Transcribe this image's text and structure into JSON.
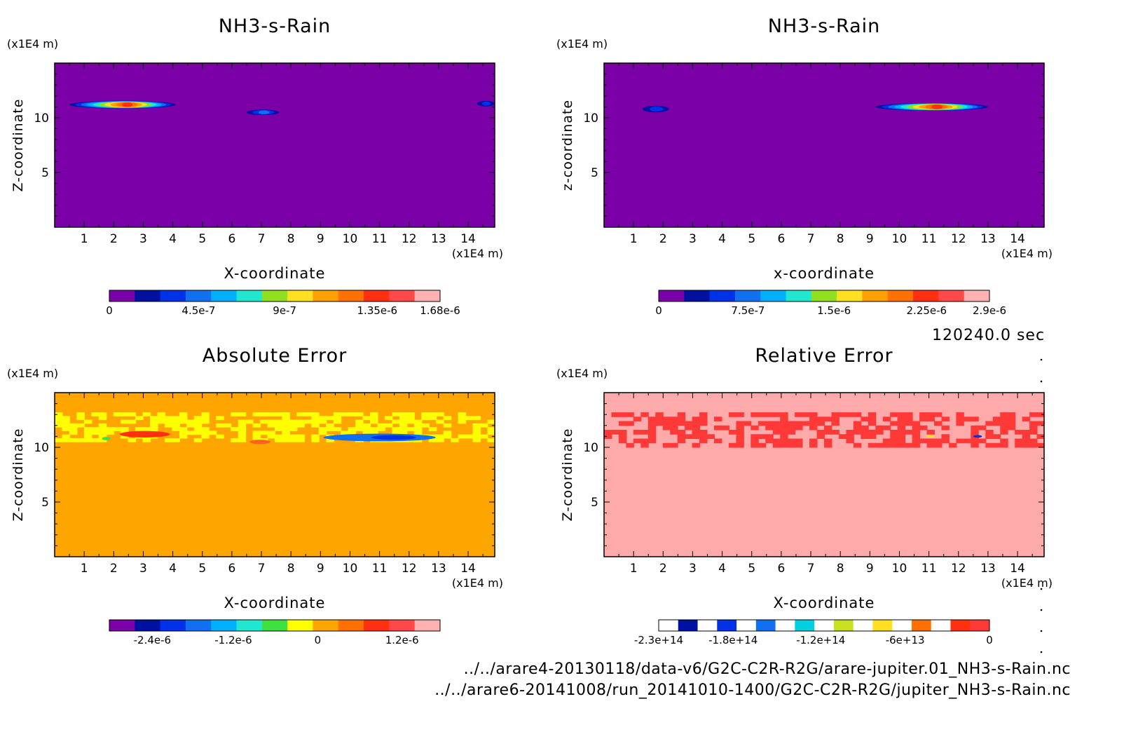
{
  "time_label": "120240.0 sec",
  "footer": {
    "file1": "../../arare4-20130118/data-v6/G2C-C2R-R2G/arare-jupiter.01_NH3-s-Rain.nc",
    "file2": "../../arare6-20141008/run_20141010-1400/G2C-C2R-R2G/jupiter_NH3-s-Rain.nc"
  },
  "chart_data": [
    {
      "type": "heatmap",
      "title": "NH3-s-Rain",
      "xlabel": "X-coordinate",
      "ylabel": "Z-coordinate",
      "x_unit": "(x1E4 m)",
      "y_unit": "(x1E4 m)",
      "xlim": [
        0,
        14.9
      ],
      "ylim": [
        0,
        15
      ],
      "xticks": [
        "1",
        "2",
        "3",
        "4",
        "5",
        "6",
        "7",
        "8",
        "9",
        "10",
        "11",
        "12",
        "13",
        "14"
      ],
      "yticks": [
        "5",
        "10"
      ],
      "background_color": "#7b00a8",
      "blobs": [
        {
          "x0": 0.5,
          "x1": 4.1,
          "z": 11.2,
          "half_height": 0.35,
          "peak": 0.85
        },
        {
          "x0": 6.5,
          "x1": 7.6,
          "z": 10.5,
          "half_height": 0.25,
          "peak": 0.25
        },
        {
          "x0": 14.3,
          "x1": 14.9,
          "z": 11.3,
          "half_height": 0.25,
          "peak": 0.2
        }
      ],
      "colorbar": {
        "ticks": [
          "0",
          "4.5e-7",
          "9e-7",
          "1.35e-6",
          "1.68e-6"
        ],
        "colors": [
          "#7b00a8",
          "#0010a0",
          "#0030e8",
          "#1070f0",
          "#00b0ff",
          "#20e8d0",
          "#90e020",
          "#ffe020",
          "#ffa000",
          "#ff7000",
          "#ff3010",
          "#ff4848",
          "#ffb0b0"
        ]
      }
    },
    {
      "type": "heatmap",
      "title": "NH3-s-Rain",
      "xlabel": "x-coordinate",
      "ylabel": "z-coordinate",
      "x_unit": "(x1E4 m)",
      "y_unit": "(x1E4 m)",
      "xlim": [
        0,
        14.9
      ],
      "ylim": [
        0,
        15
      ],
      "xticks": [
        "1",
        "2",
        "3",
        "4",
        "5",
        "6",
        "7",
        "8",
        "9",
        "10",
        "11",
        "12",
        "13",
        "14"
      ],
      "yticks": [
        "5",
        "10"
      ],
      "background_color": "#7b00a8",
      "blobs": [
        {
          "x0": 1.3,
          "x1": 2.2,
          "z": 10.8,
          "half_height": 0.3,
          "peak": 0.2
        },
        {
          "x0": 9.2,
          "x1": 13.0,
          "z": 11.0,
          "half_height": 0.35,
          "peak": 0.85
        }
      ],
      "colorbar": {
        "ticks": [
          "0",
          "7.5e-7",
          "1.5e-6",
          "2.25e-6",
          "2.9e-6"
        ],
        "colors": [
          "#7b00a8",
          "#0010a0",
          "#0030e8",
          "#1070f0",
          "#00b0ff",
          "#20e8d0",
          "#90e020",
          "#ffe020",
          "#ffa000",
          "#ff7000",
          "#ff3010",
          "#ff4848",
          "#ffb0b0"
        ]
      }
    },
    {
      "type": "heatmap",
      "title": "Absolute Error",
      "xlabel": "X-coordinate",
      "ylabel": "Z-coordinate",
      "x_unit": "(x1E4 m)",
      "y_unit": "(x1E4 m)",
      "xlim": [
        0,
        14.9
      ],
      "ylim": [
        0,
        15
      ],
      "xticks": [
        "1",
        "2",
        "3",
        "4",
        "5",
        "6",
        "7",
        "8",
        "9",
        "10",
        "11",
        "12",
        "13",
        "14"
      ],
      "yticks": [
        "5",
        "10"
      ],
      "background_color": "#ffa500",
      "noise_band": {
        "z0": 10.5,
        "z1": 13.2,
        "color": "#ffff00"
      },
      "blobs": [
        {
          "x0": 2.2,
          "x1": 3.9,
          "z": 11.2,
          "half_height": 0.3,
          "color": "#ff3010"
        },
        {
          "x0": 6.6,
          "x1": 7.3,
          "z": 10.5,
          "half_height": 0.2,
          "color": "#ff6020"
        },
        {
          "x0": 1.6,
          "x1": 1.9,
          "z": 10.8,
          "half_height": 0.15,
          "color": "#40e040"
        },
        {
          "x0": 9.1,
          "x1": 12.9,
          "z": 10.9,
          "half_height": 0.35,
          "color": "#1070f0",
          "inner": "#0030e8"
        }
      ],
      "colorbar": {
        "ticks": [
          "-2.4e-6",
          "-1.2e-6",
          "0",
          "1.2e-6"
        ],
        "colors": [
          "#7b00a8",
          "#0010a0",
          "#0030e8",
          "#1070f0",
          "#00b0ff",
          "#20e8d0",
          "#40e040",
          "#ffff00",
          "#ffa500",
          "#ff7000",
          "#ff3010",
          "#ff4848",
          "#ffb0b0"
        ]
      }
    },
    {
      "type": "heatmap",
      "title": "Relative Error",
      "xlabel": "X-coordinate",
      "ylabel": "Z-coordinate",
      "x_unit": "(x1E4 m)",
      "y_unit": "(x1E4 m)",
      "xlim": [
        0,
        14.9
      ],
      "ylim": [
        0,
        15
      ],
      "xticks": [
        "1",
        "2",
        "3",
        "4",
        "5",
        "6",
        "7",
        "8",
        "9",
        "10",
        "11",
        "12",
        "13",
        "14"
      ],
      "yticks": [
        "5",
        "10"
      ],
      "background_color": "#ffaaaa",
      "noise_band": {
        "z0": 10.0,
        "z1": 13.2,
        "color": "#ff3838"
      },
      "blobs": [
        {
          "x0": 10.9,
          "x1": 11.2,
          "z": 11.0,
          "half_height": 0.12,
          "color": "#ffe020"
        },
        {
          "x0": 12.5,
          "x1": 12.8,
          "z": 11.0,
          "half_height": 0.12,
          "color": "#0030e8"
        }
      ],
      "colorbar": {
        "ticks": [
          "-2.3e+14",
          "-1.8e+14",
          "-1.2e+14",
          "-6e+13",
          "0"
        ],
        "colors": [
          "#ffffff",
          "#0010a0",
          "#ffffff",
          "#0030e8",
          "#ffffff",
          "#1070f0",
          "#ffffff",
          "#00d0e0",
          "#ffffff",
          "#c8e020",
          "#ffffff",
          "#ffe020",
          "#ffffff",
          "#ff7000",
          "#ffffff",
          "#ff3010",
          "#ff3838"
        ]
      }
    }
  ]
}
